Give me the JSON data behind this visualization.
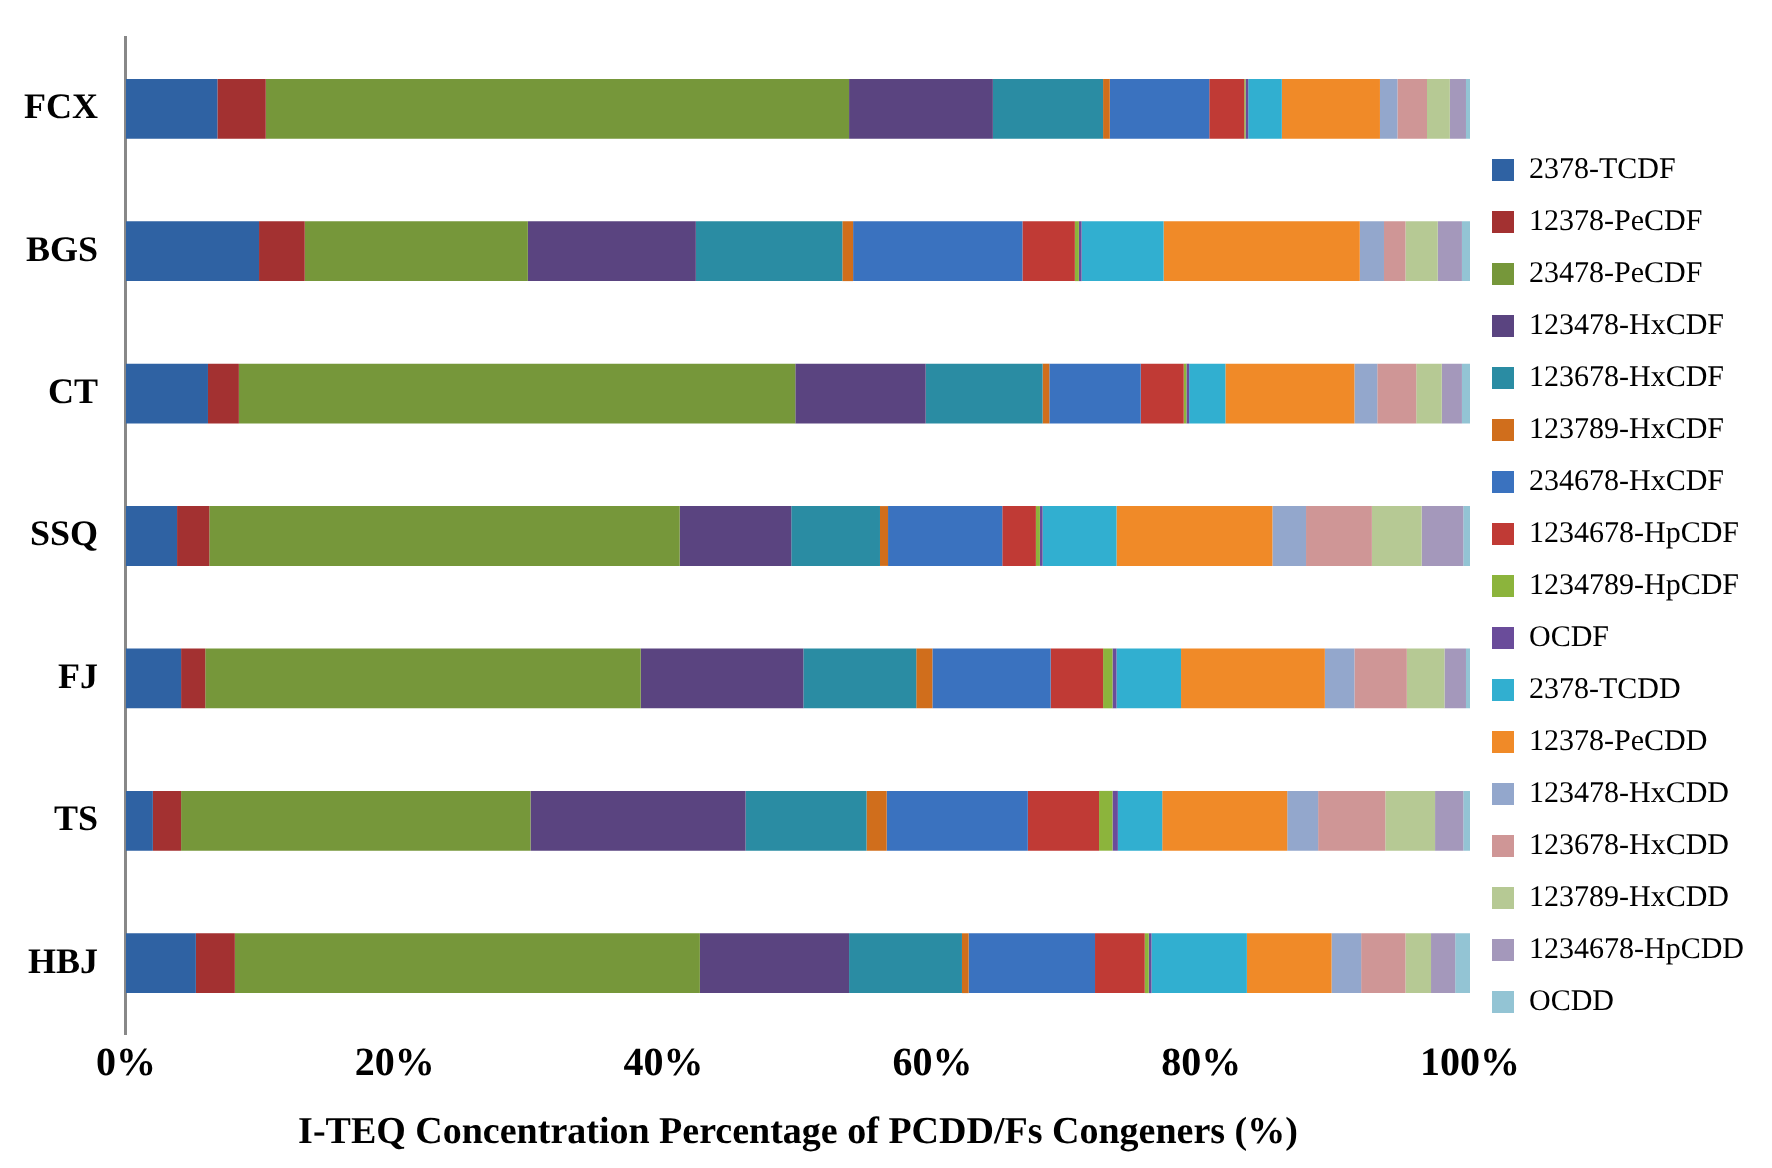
{
  "chart_data": {
    "type": "bar",
    "orientation": "horizontal",
    "stacked": true,
    "xlabel": "I-TEQ Concentration Percentage of PCDD/Fs Congeners (%)",
    "categories": [
      "FCX",
      "BGS",
      "CT",
      "SSQ",
      "FJ",
      "TS",
      "HBJ"
    ],
    "xlim": [
      0,
      100
    ],
    "xticks": [
      {
        "value": 0,
        "label": "0%"
      },
      {
        "value": 20,
        "label": "20%"
      },
      {
        "value": 40,
        "label": "40%"
      },
      {
        "value": 60,
        "label": "60%"
      },
      {
        "value": 80,
        "label": "80%"
      },
      {
        "value": 100,
        "label": "100%"
      }
    ],
    "grid": false,
    "legend": "right",
    "series": [
      {
        "name": "2378-TCDF",
        "color": "#2f62a3",
        "values": [
          6.8,
          9.9,
          6.1,
          3.8,
          4.1,
          2.0,
          5.2
        ]
      },
      {
        "name": "12378-PeCDF",
        "color": "#a33131",
        "values": [
          3.6,
          3.4,
          2.3,
          2.4,
          1.8,
          2.1,
          2.9
        ]
      },
      {
        "name": "23478-PeCDF",
        "color": "#76973a",
        "values": [
          43.4,
          16.6,
          41.4,
          35.0,
          32.4,
          26.0,
          34.6
        ]
      },
      {
        "name": "123478-HxCDF",
        "color": "#5a4480",
        "values": [
          10.7,
          12.5,
          9.7,
          8.3,
          12.1,
          16.0,
          11.1
        ]
      },
      {
        "name": "123678-HxCDF",
        "color": "#2a8ca3",
        "values": [
          8.2,
          10.9,
          8.7,
          6.6,
          8.4,
          9.0,
          8.4
        ]
      },
      {
        "name": "123789-HxCDF",
        "color": "#d06e1c",
        "values": [
          0.5,
          0.8,
          0.5,
          0.6,
          1.2,
          1.5,
          0.5
        ]
      },
      {
        "name": "234678-HxCDF",
        "color": "#3a72bf",
        "values": [
          7.4,
          12.6,
          6.8,
          8.5,
          8.8,
          10.5,
          9.4
        ]
      },
      {
        "name": "1234678-HpCDF",
        "color": "#c03a35",
        "values": [
          2.6,
          3.9,
          3.2,
          2.5,
          3.9,
          5.3,
          3.7
        ]
      },
      {
        "name": "1234789-HpCDF",
        "color": "#8cb43c",
        "values": [
          0.1,
          0.3,
          0.2,
          0.3,
          0.7,
          1.0,
          0.3
        ]
      },
      {
        "name": "OCDF",
        "color": "#6a4c9a",
        "values": [
          0.2,
          0.2,
          0.2,
          0.2,
          0.3,
          0.4,
          0.2
        ]
      },
      {
        "name": "2378-TCDD",
        "color": "#31afd0",
        "values": [
          2.5,
          6.1,
          2.7,
          5.5,
          4.8,
          3.3,
          7.1
        ]
      },
      {
        "name": "12378-PeCDD",
        "color": "#f08a28",
        "values": [
          7.3,
          14.6,
          9.6,
          11.6,
          10.7,
          9.3,
          6.3
        ]
      },
      {
        "name": "123478-HxCDD",
        "color": "#93a7cc",
        "values": [
          1.3,
          1.8,
          1.7,
          2.5,
          2.2,
          2.3,
          2.2
        ]
      },
      {
        "name": "123678-HxCDD",
        "color": "#cf9696",
        "values": [
          2.2,
          1.6,
          2.9,
          4.9,
          3.9,
          5.0,
          3.3
        ]
      },
      {
        "name": "123789-HxCDD",
        "color": "#b6c994",
        "values": [
          1.7,
          2.4,
          1.9,
          3.7,
          2.8,
          3.7,
          1.9
        ]
      },
      {
        "name": "1234678-HpCDD",
        "color": "#a498bb",
        "values": [
          1.2,
          1.8,
          1.5,
          3.1,
          1.6,
          2.1,
          1.8
        ]
      },
      {
        "name": "OCDD",
        "color": "#93c4d4",
        "values": [
          0.3,
          0.6,
          0.6,
          0.5,
          0.3,
          0.5,
          1.1
        ]
      }
    ]
  }
}
